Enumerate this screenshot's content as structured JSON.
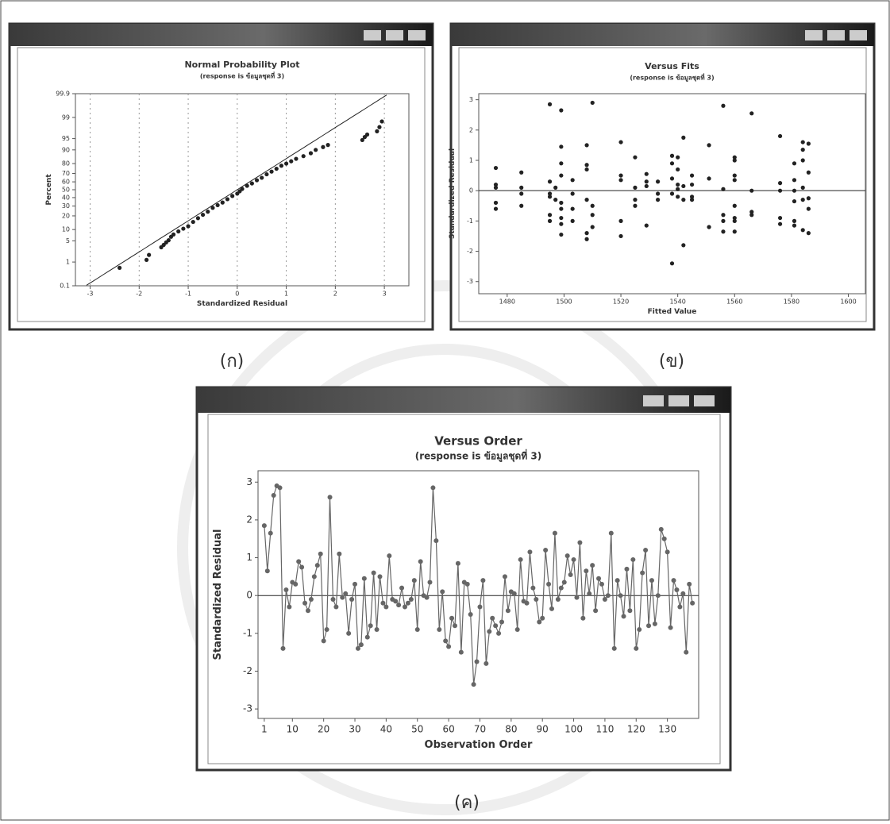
{
  "chart_data": [
    {
      "type": "probability",
      "title": "Normal Probability Plot",
      "subtitle": "(response is ข้อมูลชุดที่ 3)",
      "x_label": "Standardized Residual",
      "y_label": "Percent",
      "yscale": "probability",
      "xgrid": true,
      "color": "#222222",
      "x": [
        -2.4,
        -1.85,
        -1.8,
        -1.55,
        -1.5,
        -1.45,
        -1.4,
        -1.35,
        -1.3,
        -1.2,
        -1.1,
        -1.0,
        -0.9,
        -0.8,
        -0.7,
        -0.6,
        -0.5,
        -0.4,
        -0.3,
        -0.2,
        -0.1,
        0.0,
        0.05,
        0.1,
        0.2,
        0.3,
        0.4,
        0.5,
        0.6,
        0.7,
        0.8,
        0.9,
        1.0,
        1.1,
        1.2,
        1.35,
        1.5,
        1.6,
        1.75,
        1.85,
        2.55,
        2.6,
        2.65,
        2.85,
        2.9,
        2.95
      ],
      "values": [
        0.6,
        1.2,
        1.8,
        3.2,
        3.8,
        4.5,
        5.2,
        6.5,
        7.5,
        9,
        10.5,
        12,
        15,
        18,
        21,
        24,
        28,
        31,
        34,
        38,
        42,
        45,
        48,
        51,
        55,
        58,
        62,
        65,
        69,
        72,
        75,
        78,
        80,
        82,
        84,
        86,
        88,
        90,
        91.5,
        92.5,
        94.5,
        95.5,
        96.2,
        97,
        97.8,
        98.6
      ],
      "xlim": [
        -3.3,
        3.5
      ],
      "xticks": [
        -3,
        -2,
        -1,
        0,
        1,
        2,
        3
      ],
      "ylim": [
        0.1,
        99.9
      ],
      "yticks": [
        0.1,
        1,
        5,
        10,
        20,
        30,
        40,
        50,
        60,
        70,
        80,
        90,
        95,
        99,
        99.9
      ]
    },
    {
      "type": "scatter",
      "title": "Versus Fits",
      "subtitle": "(response is ข้อมูลชุดที่ 3)",
      "x_label": "Fitted Value",
      "y_label": "Standardized Residual",
      "color": "#222222",
      "x": [
        1476,
        1476,
        1476,
        1476,
        1476,
        1485,
        1485,
        1485,
        1485,
        1495,
        1495,
        1495,
        1495,
        1495,
        1495,
        1497,
        1497,
        1499,
        1499,
        1499,
        1499,
        1499,
        1499,
        1499,
        1499,
        1499,
        1503,
        1503,
        1503,
        1503,
        1508,
        1508,
        1508,
        1508,
        1508,
        1508,
        1510,
        1510,
        1510,
        1510,
        1520,
        1520,
        1520,
        1520,
        1520,
        1525,
        1525,
        1525,
        1525,
        1529,
        1529,
        1529,
        1529,
        1533,
        1533,
        1533,
        1538,
        1538,
        1538,
        1538,
        1538,
        1540,
        1540,
        1540,
        1540,
        1540,
        1542,
        1542,
        1542,
        1542,
        1545,
        1545,
        1545,
        1545,
        1551,
        1551,
        1551,
        1556,
        1556,
        1556,
        1556,
        1556,
        1560,
        1560,
        1560,
        1560,
        1560,
        1560,
        1560,
        1560,
        1566,
        1566,
        1566,
        1566,
        1576,
        1576,
        1576,
        1576,
        1576,
        1581,
        1581,
        1581,
        1581,
        1581,
        1581,
        1584,
        1584,
        1584,
        1584,
        1584,
        1584,
        1586,
        1586,
        1586,
        1586,
        1586
      ],
      "values": [
        0.75,
        0.2,
        0.1,
        -0.4,
        -0.6,
        0.6,
        0.1,
        -0.1,
        -0.5,
        2.85,
        0.3,
        -0.1,
        -0.2,
        -0.8,
        -1.0,
        0.1,
        -0.3,
        2.65,
        1.45,
        0.9,
        0.5,
        -0.4,
        -0.6,
        -0.9,
        -1.1,
        -1.45,
        0.35,
        -0.1,
        -0.6,
        -1.0,
        1.5,
        0.85,
        0.7,
        -0.3,
        -1.4,
        -1.6,
        2.9,
        -0.5,
        -0.8,
        -1.2,
        1.6,
        0.5,
        0.35,
        -1.0,
        -1.5,
        1.1,
        0.1,
        -0.3,
        -0.5,
        0.55,
        0.3,
        0.15,
        -1.15,
        0.3,
        -0.1,
        -0.3,
        1.15,
        0.9,
        0.4,
        -0.1,
        -2.4,
        1.1,
        0.7,
        0.2,
        -0.2,
        0.05,
        1.75,
        0.15,
        -0.3,
        -1.8,
        0.5,
        0.2,
        -0.2,
        -0.3,
        1.5,
        0.4,
        -1.2,
        2.8,
        0.05,
        -0.8,
        -1.0,
        -1.35,
        1.1,
        1.0,
        0.5,
        0.35,
        -0.5,
        -0.9,
        -1.0,
        -1.35,
        2.55,
        0.0,
        -0.7,
        -0.8,
        1.8,
        0.25,
        0.0,
        -0.9,
        -1.1,
        0.9,
        0.35,
        0.0,
        -0.35,
        -1.0,
        -1.15,
        1.6,
        1.35,
        1.0,
        0.1,
        -0.3,
        -1.3,
        1.55,
        0.6,
        -0.25,
        -0.6,
        -1.4
      ],
      "xlim": [
        1470,
        1606
      ],
      "xticks": [
        1480,
        1500,
        1520,
        1540,
        1560,
        1580,
        1600
      ],
      "ylim": [
        -3.4,
        3.2
      ],
      "yticks": [
        -3,
        -2,
        -1,
        0,
        1,
        2,
        3
      ]
    },
    {
      "type": "line",
      "title": "Versus Order",
      "subtitle": "(response is ข้อมูลชุดที่ 3)",
      "x_label": "Observation Order",
      "y_label": "Standardized Residual",
      "color": "#666666",
      "x": [
        1,
        2,
        3,
        4,
        5,
        6,
        7,
        8,
        9,
        10,
        11,
        12,
        13,
        14,
        15,
        16,
        17,
        18,
        19,
        20,
        21,
        22,
        23,
        24,
        25,
        26,
        27,
        28,
        29,
        30,
        31,
        32,
        33,
        34,
        35,
        36,
        37,
        38,
        39,
        40,
        41,
        42,
        43,
        44,
        45,
        46,
        47,
        48,
        49,
        50,
        51,
        52,
        53,
        54,
        55,
        56,
        57,
        58,
        59,
        60,
        61,
        62,
        63,
        64,
        65,
        66,
        67,
        68,
        69,
        70,
        71,
        72,
        73,
        74,
        75,
        76,
        77,
        78,
        79,
        80,
        81,
        82,
        83,
        84,
        85,
        86,
        87,
        88,
        89,
        90,
        91,
        92,
        93,
        94,
        95,
        96,
        97,
        98,
        99,
        100,
        101,
        102,
        103,
        104,
        105,
        106,
        107,
        108,
        109,
        110,
        111,
        112,
        113,
        114,
        115,
        116,
        117,
        118,
        119,
        120,
        121,
        122,
        123,
        124,
        125,
        126,
        127,
        128,
        129,
        130,
        131,
        132,
        133,
        134,
        135,
        136,
        137,
        138
      ],
      "values": [
        1.85,
        0.65,
        1.65,
        2.65,
        2.9,
        2.85,
        -1.4,
        0.15,
        -0.3,
        0.35,
        0.3,
        0.9,
        0.75,
        -0.2,
        -0.4,
        -0.1,
        0.5,
        0.8,
        1.1,
        -1.2,
        -0.9,
        2.6,
        -0.1,
        -0.3,
        1.1,
        -0.05,
        0.05,
        -1.0,
        -0.1,
        0.3,
        -1.4,
        -1.3,
        0.45,
        -1.1,
        -0.8,
        0.6,
        -0.9,
        0.5,
        -0.2,
        -0.3,
        1.05,
        -0.1,
        -0.15,
        -0.25,
        0.2,
        -0.3,
        -0.2,
        -0.1,
        0.4,
        -0.9,
        0.9,
        0.0,
        -0.05,
        0.35,
        2.85,
        1.45,
        -0.9,
        0.1,
        -1.2,
        -1.35,
        -0.6,
        -0.8,
        0.85,
        -1.5,
        0.35,
        0.3,
        -0.5,
        -2.35,
        -1.75,
        -0.3,
        0.4,
        -1.8,
        -0.95,
        -0.6,
        -0.8,
        -1.0,
        -0.7,
        0.5,
        -0.4,
        0.1,
        0.05,
        -0.9,
        0.95,
        -0.15,
        -0.2,
        1.15,
        0.2,
        -0.1,
        -0.7,
        -0.6,
        1.2,
        0.3,
        -0.35,
        1.65,
        -0.1,
        0.2,
        0.35,
        1.05,
        0.55,
        0.95,
        -0.05,
        1.4,
        -0.6,
        0.65,
        0.05,
        0.8,
        -0.4,
        0.45,
        0.3,
        -0.1,
        0.0,
        1.65,
        -1.4,
        0.4,
        0.0,
        -0.55,
        0.7,
        -0.4,
        0.95,
        -1.4,
        -0.9,
        0.6,
        1.2,
        -0.8,
        0.4,
        -0.75,
        0.0,
        1.75,
        1.5,
        1.15,
        -0.85,
        0.4,
        0.15,
        -0.3,
        0.05,
        -1.5,
        0.3,
        -0.2
      ],
      "xlim": [
        -1,
        140
      ],
      "xticks": [
        1,
        10,
        20,
        30,
        40,
        50,
        60,
        70,
        80,
        90,
        100,
        110,
        120,
        130
      ],
      "ylim": [
        -3.25,
        3.3
      ],
      "yticks": [
        -3,
        -2,
        -1,
        0,
        1,
        2,
        3
      ]
    }
  ],
  "captions": [
    "(ก)",
    "(ข)",
    "(ค)"
  ]
}
